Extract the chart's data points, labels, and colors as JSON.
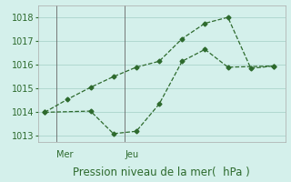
{
  "line1_x": [
    0,
    1,
    2,
    3,
    4,
    5,
    6,
    7,
    8,
    9,
    10
  ],
  "line1_y": [
    1014.0,
    1014.55,
    1015.05,
    1015.5,
    1015.9,
    1016.15,
    1017.1,
    1017.75,
    1018.0,
    1015.85,
    1015.95
  ],
  "line2_x": [
    0,
    2,
    3,
    4,
    5,
    6,
    7,
    8,
    10
  ],
  "line2_y": [
    1014.0,
    1014.05,
    1013.1,
    1013.2,
    1014.35,
    1016.15,
    1016.65,
    1015.9,
    1015.95
  ],
  "line_color": "#2d6a2d",
  "bg_color": "#d4f0eb",
  "grid_color": "#b0d8d0",
  "ylim": [
    1012.75,
    1018.5
  ],
  "yticks": [
    1013,
    1014,
    1015,
    1016,
    1017,
    1018
  ],
  "xlim": [
    -0.3,
    10.5
  ],
  "mer_x": 0.5,
  "jeu_x": 3.5,
  "xlabel": "Pression niveau de la mer(  hPa )",
  "xlabel_fontsize": 8.5,
  "tick_fontsize": 7
}
